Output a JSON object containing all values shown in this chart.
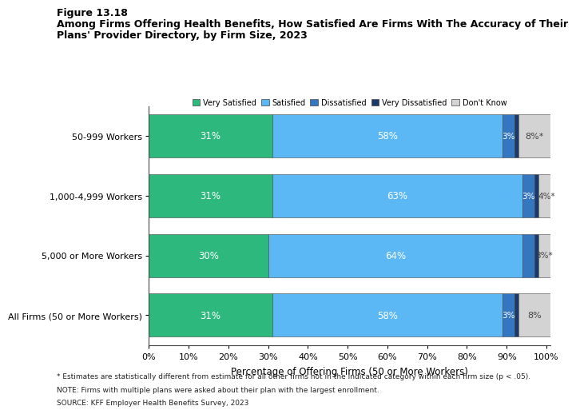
{
  "categories": [
    "50-999 Workers",
    "1,000-4,999 Workers",
    "5,000 or More Workers",
    "All Firms (50 or More Workers)"
  ],
  "series": {
    "Very Satisfied": [
      31,
      31,
      30,
      31
    ],
    "Satisfied": [
      58,
      63,
      64,
      58
    ],
    "Dissatisfied": [
      3,
      3,
      3,
      3
    ],
    "Very Dissatisfied": [
      1,
      1,
      1,
      1
    ],
    "Dont Know": [
      8,
      4,
      3,
      8
    ]
  },
  "labels": {
    "Very Satisfied": [
      "31%",
      "31%",
      "30%",
      "31%"
    ],
    "Satisfied": [
      "58%",
      "63%",
      "64%",
      "58%"
    ],
    "Dissatisfied": [
      "3%",
      "3%",
      "",
      "3%"
    ],
    "Very Dissatisfied": [
      "",
      "",
      "",
      ""
    ],
    "Dont Know": [
      "8%*",
      "4%*",
      "3%*",
      "8%"
    ]
  },
  "colors": {
    "Very Satisfied": "#2db87d",
    "Satisfied": "#5bb8f5",
    "Dissatisfied": "#3477c0",
    "Very Dissatisfied": "#1a3a6b",
    "Dont Know": "#d3d3d3"
  },
  "legend_labels": [
    "Very Satisfied",
    "Satisfied",
    "Dissatisfied",
    "Very Dissatisfied",
    "Don't Know"
  ],
  "legend_colors": [
    "#2db87d",
    "#5bb8f5",
    "#3477c0",
    "#1a3a6b",
    "#d3d3d3"
  ],
  "title_line1": "Figure 13.18",
  "title_line2": "Among Firms Offering Health Benefits, How Satisfied Are Firms With The Accuracy of Their",
  "title_line3": "Plans' Provider Directory, by Firm Size, 2023",
  "xlabel": "Percentage of Offering Firms (50 or More Workers)",
  "xticks": [
    0,
    10,
    20,
    30,
    40,
    50,
    60,
    70,
    80,
    90,
    100
  ],
  "xticklabels": [
    "0%",
    "10%",
    "20%",
    "30%",
    "40%",
    "50%",
    "60%",
    "70%",
    "80%",
    "90%",
    "100%"
  ],
  "footnote1": "* Estimates are statistically different from estimate for all other firms not in the indicated category within each firm size (p < .05).",
  "footnote2": "NOTE: Firms with multiple plans were asked about their plan with the largest enrollment.",
  "footnote3": "SOURCE: KFF Employer Health Benefits Survey, 2023"
}
